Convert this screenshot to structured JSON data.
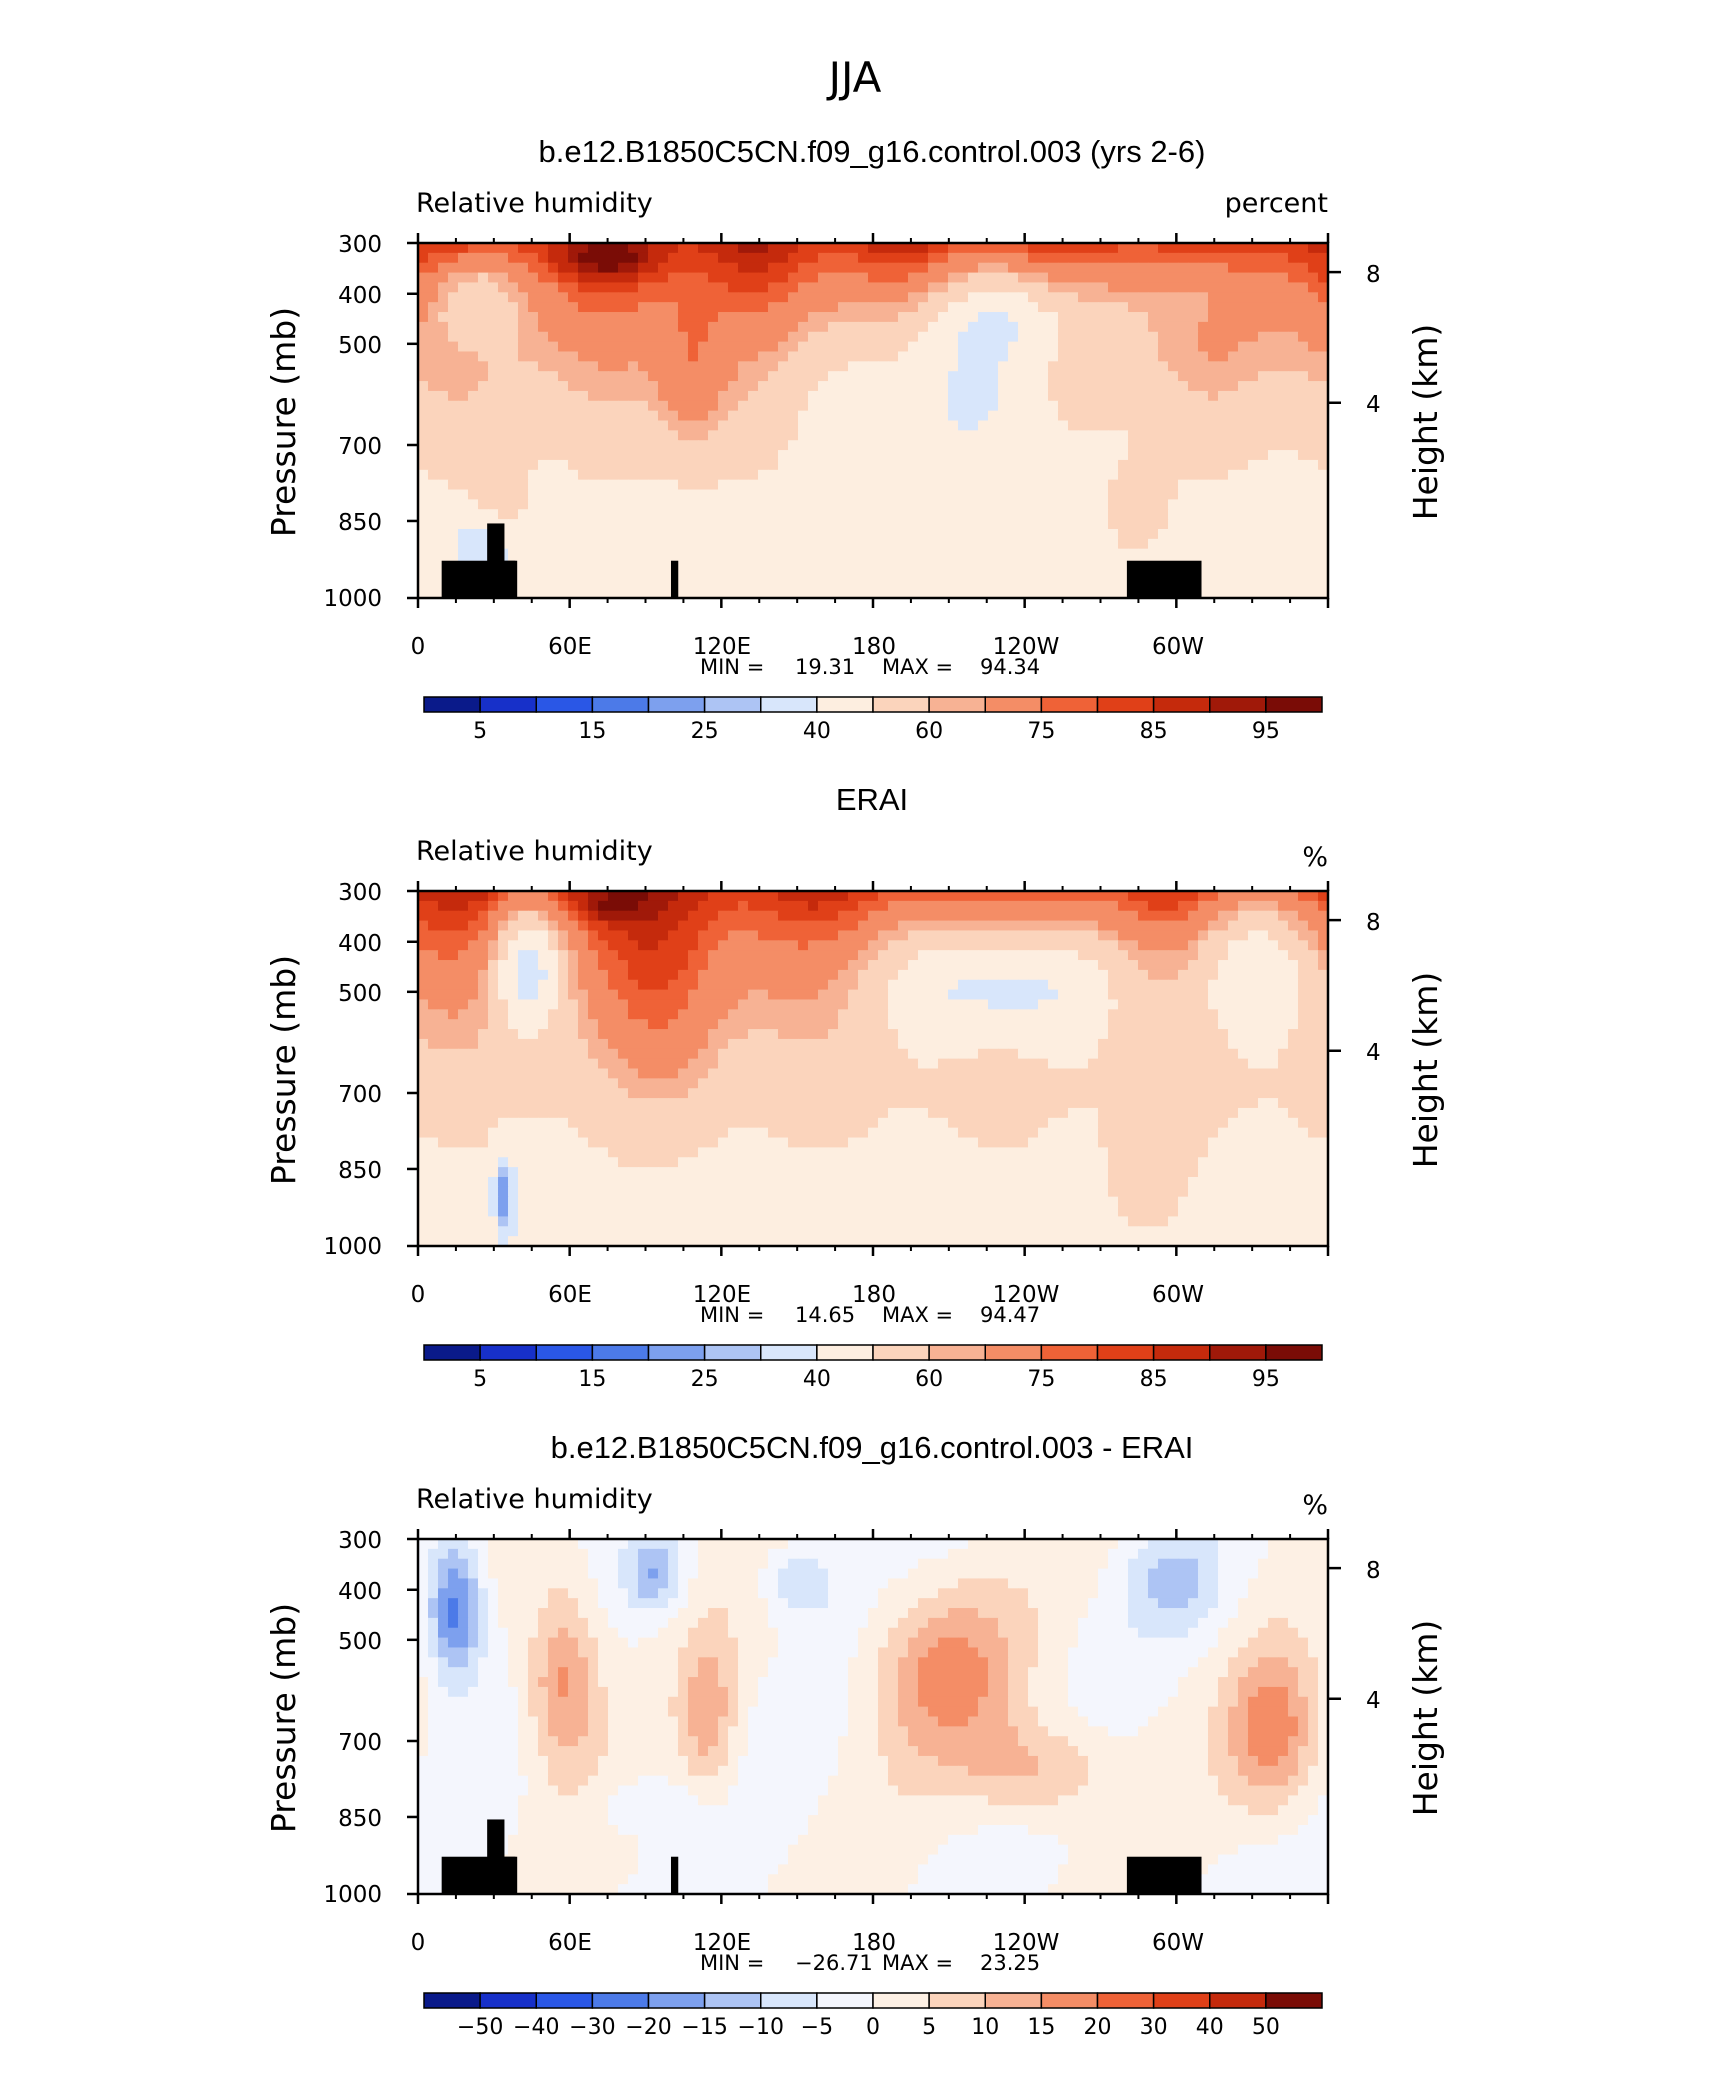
{
  "figure": {
    "season_title": "JJA"
  },
  "colors": {
    "abs_palette": [
      "#0a1a8a",
      "#1730c9",
      "#2a57e6",
      "#4c7ae8",
      "#7da0ee",
      "#adc4f4",
      "#d8e6fb",
      "#fdeee0",
      "#fbd4bc",
      "#f7b294",
      "#f48d66",
      "#ef6237",
      "#e04018",
      "#c52a0c",
      "#a01909",
      "#7a0c06"
    ],
    "diff_palette": [
      "#0a1a8a",
      "#1730c9",
      "#2a57e6",
      "#4c7ae8",
      "#7da0ee",
      "#adc4f4",
      "#d8e6fb",
      "#f4f6fd",
      "#fdf0e4",
      "#fbd4bc",
      "#f7b294",
      "#f48d66",
      "#ef6237",
      "#e04018",
      "#c52a0c",
      "#7a0c06"
    ]
  },
  "chart_data": [
    {
      "type": "heatmap",
      "title": "b.e12.B1850C5CN.f09_g16.control.003 (yrs 2-6)",
      "variable_label": "Relative humidity",
      "units_label": "percent",
      "ylabel": "Pressure (mb)",
      "ylabel_right": "Height (km)",
      "x_ticks": [
        "0",
        "60E",
        "120E",
        "180",
        "120W",
        "60W"
      ],
      "y_ticks": [
        "300",
        "400",
        "500",
        "700",
        "850",
        "1000"
      ],
      "y_right_ticks": [
        "8",
        "4"
      ],
      "stats": {
        "min_label": "MIN =",
        "min": "19.31",
        "max_label": "MAX =",
        "max": "94.34"
      },
      "colorbar_labels": [
        "5",
        "15",
        "25",
        "40",
        "60",
        "75",
        "85",
        "95"
      ],
      "has_topography_mask": true
    },
    {
      "type": "heatmap",
      "title": "ERAI",
      "variable_label": "Relative humidity",
      "units_label": "%",
      "ylabel": "Pressure (mb)",
      "ylabel_right": "Height (km)",
      "x_ticks": [
        "0",
        "60E",
        "120E",
        "180",
        "120W",
        "60W"
      ],
      "y_ticks": [
        "300",
        "400",
        "500",
        "700",
        "850",
        "1000"
      ],
      "y_right_ticks": [
        "8",
        "4"
      ],
      "stats": {
        "min_label": "MIN =",
        "min": "14.65",
        "max_label": "MAX =",
        "max": "94.47"
      },
      "colorbar_labels": [
        "5",
        "15",
        "25",
        "40",
        "60",
        "75",
        "85",
        "95"
      ],
      "has_topography_mask": false
    },
    {
      "type": "heatmap",
      "title": "b.e12.B1850C5CN.f09_g16.control.003 - ERAI",
      "variable_label": "Relative humidity",
      "units_label": "%",
      "ylabel": "Pressure (mb)",
      "ylabel_right": "Height (km)",
      "x_ticks": [
        "0",
        "60E",
        "120E",
        "180",
        "120W",
        "60W"
      ],
      "y_ticks": [
        "300",
        "400",
        "500",
        "700",
        "850",
        "1000"
      ],
      "y_right_ticks": [
        "8",
        "4"
      ],
      "stats": {
        "min_label": "MIN =",
        "min": "−26.71",
        "max_label": "MAX =",
        "max": "23.25"
      },
      "colorbar_labels": [
        "−50",
        "−40",
        "−30",
        "−20",
        "−15",
        "−10",
        "−5",
        "0",
        "5",
        "10",
        "15",
        "20",
        "30",
        "40",
        "50"
      ],
      "has_topography_mask": true
    }
  ]
}
